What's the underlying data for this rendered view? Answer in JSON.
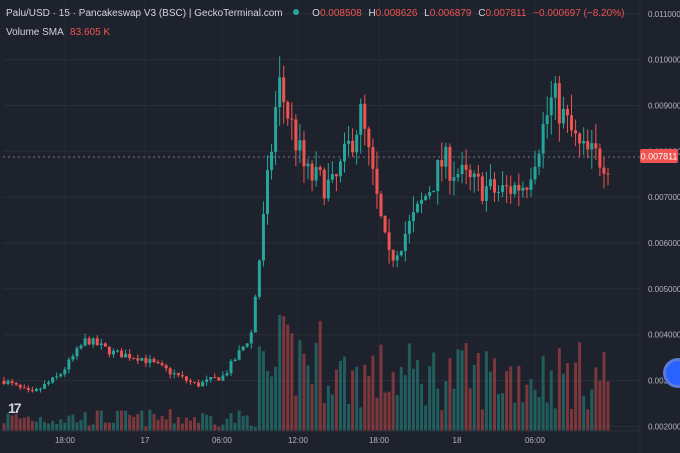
{
  "header": {
    "symbol_line": "Palu/USD · 15 · Pancakeswap V3 (BSC) | GeckoTerminal.com",
    "ohlc": [
      {
        "k": "O",
        "v": "0.008508"
      },
      {
        "k": "H",
        "v": "0.008626"
      },
      {
        "k": "L",
        "v": "0.006879"
      },
      {
        "k": "C",
        "v": "0.007811"
      }
    ],
    "change": "−0.000697 (−8.20%)"
  },
  "volume_legend": {
    "label": "Volume SMA",
    "value": "83.605 K"
  },
  "last_price_label": "0.007811",
  "colors": {
    "up": "#26a69a",
    "down": "#ef5350",
    "background": "#1e222d",
    "axis_text": "#b2b5be"
  },
  "icons": {
    "logo": "tradingview-logo-icon",
    "scroll": "chart-scroll-button-icon"
  },
  "chart_data": {
    "type": "candlestick",
    "y_axis": {
      "position": "right",
      "ylim": [
        0.0019,
        0.0113
      ],
      "ticks": [
        "0.011000",
        "0.010000",
        "0.009000",
        "0.008000",
        "0.007000",
        "0.006000",
        "0.005000",
        "0.004000",
        "0.003000",
        "0.002000"
      ],
      "tick_values": [
        0.011,
        0.01,
        0.009,
        0.008,
        0.007,
        0.006,
        0.005,
        0.004,
        0.003,
        0.002
      ]
    },
    "x_axis": {
      "ticks": [
        "18:00",
        "17",
        "06:00",
        "12:00",
        "18:00",
        "18",
        "06:00"
      ]
    },
    "price_series": [
      {
        "x": "16 14:00",
        "price": 0.003
      },
      {
        "x": "16 16:00",
        "price": 0.0027
      },
      {
        "x": "16 18:00",
        "price": 0.0031
      },
      {
        "x": "16 20:00",
        "price": 0.0039
      },
      {
        "x": "16 22:00",
        "price": 0.0036
      },
      {
        "x": "17 00:00",
        "price": 0.0035
      },
      {
        "x": "17 03:00",
        "price": 0.0032
      },
      {
        "x": "17 06:00",
        "price": 0.0029
      },
      {
        "x": "17 09:00",
        "price": 0.0031
      },
      {
        "x": "17 11:00",
        "price": 0.004
      },
      {
        "x": "17 12:00",
        "price": 0.0095
      },
      {
        "x": "17 14:00",
        "price": 0.0075
      },
      {
        "x": "17 16:00",
        "price": 0.0072
      },
      {
        "x": "17 18:00",
        "price": 0.0088
      },
      {
        "x": "17 20:00",
        "price": 0.0056
      },
      {
        "x": "17 22:00",
        "price": 0.0066
      },
      {
        "x": "18 00:00",
        "price": 0.0078
      },
      {
        "x": "18 02:00",
        "price": 0.0073
      },
      {
        "x": "18 04:00",
        "price": 0.0071
      },
      {
        "x": "18 06:00",
        "price": 0.0073
      },
      {
        "x": "18 08:00",
        "price": 0.0092
      },
      {
        "x": "18 10:00",
        "price": 0.008
      },
      {
        "x": "18 11:00",
        "price": 0.0078
      }
    ],
    "volume_sma": 83605,
    "last_price": 0.007811
  }
}
